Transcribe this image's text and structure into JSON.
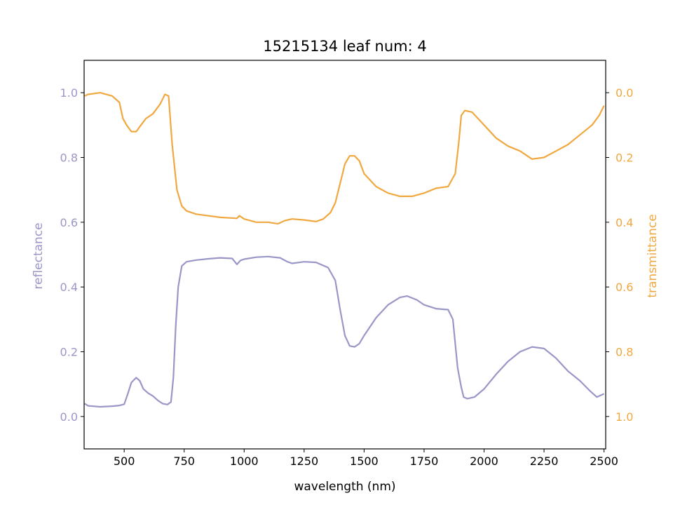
{
  "chart_data": {
    "type": "line",
    "title": "15215134 leaf num: 4",
    "xlabel": "wavelength (nm)",
    "ylabel_left": "reflectance",
    "ylabel_right": "transmittance",
    "xlim": [
      333,
      2507
    ],
    "ylim_left": [
      -0.1,
      1.1
    ],
    "ylim_right_inverted": [
      1.1,
      -0.1
    ],
    "x_ticks": [
      500,
      750,
      1000,
      1250,
      1500,
      1750,
      2000,
      2250,
      2500
    ],
    "y_left_ticks": [
      0.0,
      0.2,
      0.4,
      0.6,
      0.8,
      1.0
    ],
    "y_right_ticks": [
      0.0,
      0.2,
      0.4,
      0.6,
      0.8,
      1.0
    ],
    "grid": false,
    "colors": {
      "reflectance": "#9a96c7",
      "transmittance": "#f0a840",
      "axis": "#000000"
    },
    "series": [
      {
        "name": "reflectance",
        "axis": "left",
        "points": [
          [
            335,
            0.04
          ],
          [
            350,
            0.033
          ],
          [
            400,
            0.03
          ],
          [
            450,
            0.032
          ],
          [
            480,
            0.034
          ],
          [
            500,
            0.038
          ],
          [
            515,
            0.07
          ],
          [
            530,
            0.105
          ],
          [
            550,
            0.12
          ],
          [
            565,
            0.11
          ],
          [
            580,
            0.085
          ],
          [
            600,
            0.072
          ],
          [
            620,
            0.063
          ],
          [
            640,
            0.05
          ],
          [
            660,
            0.04
          ],
          [
            680,
            0.037
          ],
          [
            695,
            0.045
          ],
          [
            705,
            0.12
          ],
          [
            715,
            0.28
          ],
          [
            725,
            0.4
          ],
          [
            740,
            0.465
          ],
          [
            760,
            0.478
          ],
          [
            800,
            0.483
          ],
          [
            850,
            0.487
          ],
          [
            900,
            0.49
          ],
          [
            950,
            0.488
          ],
          [
            970,
            0.47
          ],
          [
            985,
            0.482
          ],
          [
            1000,
            0.486
          ],
          [
            1050,
            0.492
          ],
          [
            1100,
            0.494
          ],
          [
            1150,
            0.49
          ],
          [
            1180,
            0.478
          ],
          [
            1200,
            0.473
          ],
          [
            1250,
            0.478
          ],
          [
            1300,
            0.476
          ],
          [
            1350,
            0.46
          ],
          [
            1380,
            0.42
          ],
          [
            1400,
            0.33
          ],
          [
            1420,
            0.25
          ],
          [
            1440,
            0.218
          ],
          [
            1460,
            0.215
          ],
          [
            1480,
            0.225
          ],
          [
            1500,
            0.25
          ],
          [
            1550,
            0.305
          ],
          [
            1600,
            0.345
          ],
          [
            1650,
            0.368
          ],
          [
            1680,
            0.372
          ],
          [
            1720,
            0.36
          ],
          [
            1750,
            0.345
          ],
          [
            1800,
            0.333
          ],
          [
            1850,
            0.33
          ],
          [
            1870,
            0.3
          ],
          [
            1890,
            0.15
          ],
          [
            1905,
            0.09
          ],
          [
            1915,
            0.06
          ],
          [
            1930,
            0.055
          ],
          [
            1960,
            0.06
          ],
          [
            2000,
            0.085
          ],
          [
            2050,
            0.13
          ],
          [
            2100,
            0.17
          ],
          [
            2150,
            0.2
          ],
          [
            2200,
            0.215
          ],
          [
            2250,
            0.21
          ],
          [
            2300,
            0.18
          ],
          [
            2350,
            0.14
          ],
          [
            2400,
            0.11
          ],
          [
            2440,
            0.08
          ],
          [
            2470,
            0.06
          ],
          [
            2500,
            0.07
          ]
        ]
      },
      {
        "name": "transmittance",
        "axis": "right",
        "points": [
          [
            335,
            0.01
          ],
          [
            350,
            0.005
          ],
          [
            400,
            0.0
          ],
          [
            450,
            0.01
          ],
          [
            480,
            0.03
          ],
          [
            495,
            0.08
          ],
          [
            510,
            0.1
          ],
          [
            530,
            0.12
          ],
          [
            550,
            0.12
          ],
          [
            570,
            0.1
          ],
          [
            590,
            0.08
          ],
          [
            620,
            0.065
          ],
          [
            650,
            0.035
          ],
          [
            670,
            0.005
          ],
          [
            685,
            0.01
          ],
          [
            700,
            0.16
          ],
          [
            720,
            0.3
          ],
          [
            740,
            0.35
          ],
          [
            760,
            0.365
          ],
          [
            800,
            0.375
          ],
          [
            900,
            0.385
          ],
          [
            970,
            0.388
          ],
          [
            980,
            0.38
          ],
          [
            1000,
            0.39
          ],
          [
            1050,
            0.4
          ],
          [
            1100,
            0.4
          ],
          [
            1140,
            0.405
          ],
          [
            1170,
            0.395
          ],
          [
            1200,
            0.39
          ],
          [
            1250,
            0.393
          ],
          [
            1300,
            0.398
          ],
          [
            1330,
            0.39
          ],
          [
            1360,
            0.37
          ],
          [
            1380,
            0.34
          ],
          [
            1400,
            0.28
          ],
          [
            1420,
            0.22
          ],
          [
            1440,
            0.195
          ],
          [
            1460,
            0.195
          ],
          [
            1480,
            0.21
          ],
          [
            1500,
            0.25
          ],
          [
            1550,
            0.29
          ],
          [
            1600,
            0.31
          ],
          [
            1650,
            0.32
          ],
          [
            1700,
            0.32
          ],
          [
            1750,
            0.31
          ],
          [
            1800,
            0.295
          ],
          [
            1850,
            0.29
          ],
          [
            1880,
            0.25
          ],
          [
            1895,
            0.15
          ],
          [
            1905,
            0.07
          ],
          [
            1920,
            0.055
          ],
          [
            1950,
            0.06
          ],
          [
            2000,
            0.1
          ],
          [
            2050,
            0.14
          ],
          [
            2100,
            0.165
          ],
          [
            2150,
            0.18
          ],
          [
            2200,
            0.205
          ],
          [
            2250,
            0.2
          ],
          [
            2300,
            0.18
          ],
          [
            2350,
            0.16
          ],
          [
            2400,
            0.13
          ],
          [
            2450,
            0.1
          ],
          [
            2480,
            0.07
          ],
          [
            2500,
            0.04
          ]
        ]
      }
    ]
  }
}
